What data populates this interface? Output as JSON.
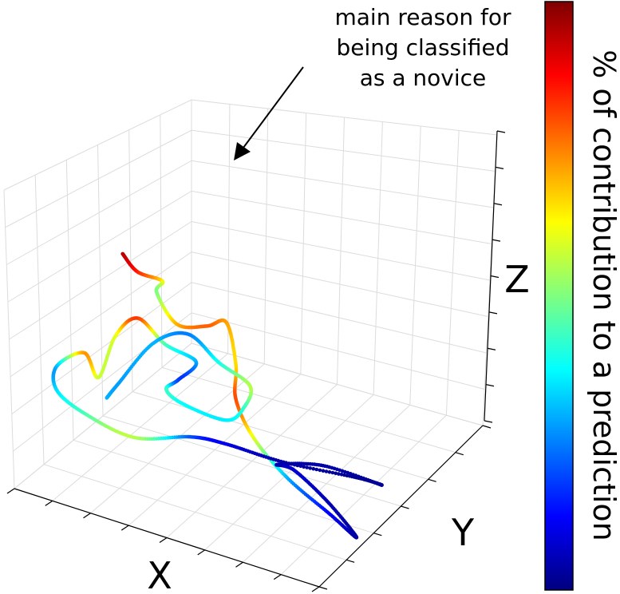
{
  "chart_data": {
    "type": "scatter",
    "projection": "3d",
    "xlabel": "X",
    "ylabel": "Y",
    "zlabel": "Z",
    "grid": true,
    "x_ticks": 9,
    "y_ticks": 7,
    "z_ticks": 9,
    "colorbar": {
      "label": "% of contribution to a prediction",
      "colormap": "jet",
      "colors": [
        "#00007f",
        "#0000ff",
        "#007fff",
        "#00ffff",
        "#7fff7f",
        "#ffff00",
        "#ff7f00",
        "#ff0000",
        "#7f0000"
      ],
      "range": [
        0,
        1
      ]
    },
    "annotation": {
      "lines": [
        "main reason for",
        "being classified",
        "as a novice"
      ],
      "arrow_target": "highest contribution point"
    },
    "trajectory_points": [
      [
        0.3,
        0.06,
        0.97,
        0.95
      ],
      [
        0.35,
        0.06,
        0.92,
        0.85
      ],
      [
        0.42,
        0.08,
        0.9,
        0.65
      ],
      [
        0.38,
        0.12,
        0.82,
        0.5
      ],
      [
        0.46,
        0.1,
        0.74,
        0.7
      ],
      [
        0.58,
        0.06,
        0.8,
        0.78
      ],
      [
        0.66,
        0.03,
        0.86,
        0.72
      ],
      [
        0.7,
        0.02,
        0.72,
        0.66
      ],
      [
        0.68,
        0.06,
        0.56,
        0.8
      ],
      [
        0.73,
        0.08,
        0.42,
        0.6
      ],
      [
        0.82,
        0.12,
        0.28,
        0.3
      ],
      [
        0.95,
        0.14,
        0.18,
        0.12
      ],
      [
        1.05,
        0.12,
        0.14,
        0.04
      ],
      [
        0.9,
        0.22,
        0.16,
        0.05
      ],
      [
        0.74,
        0.3,
        0.18,
        0.08
      ],
      [
        0.64,
        0.38,
        0.12,
        0.05
      ],
      [
        0.72,
        0.5,
        0.08,
        0.04
      ],
      [
        0.88,
        0.55,
        0.04,
        0.03
      ],
      [
        0.78,
        0.6,
        0.0,
        0.02
      ],
      [
        0.58,
        0.52,
        0.03,
        0.04
      ],
      [
        0.46,
        0.4,
        0.12,
        0.1
      ],
      [
        0.4,
        0.3,
        0.18,
        0.2
      ],
      [
        0.24,
        0.26,
        0.14,
        0.55
      ],
      [
        0.1,
        0.22,
        0.2,
        0.45
      ],
      [
        0.04,
        0.16,
        0.3,
        0.35
      ],
      [
        0.06,
        0.12,
        0.42,
        0.3
      ],
      [
        0.16,
        0.1,
        0.52,
        0.72
      ],
      [
        0.22,
        0.08,
        0.46,
        0.58
      ],
      [
        0.26,
        0.1,
        0.62,
        0.6
      ],
      [
        0.32,
        0.12,
        0.7,
        0.82
      ],
      [
        0.4,
        0.14,
        0.62,
        0.45
      ],
      [
        0.48,
        0.18,
        0.56,
        0.3
      ],
      [
        0.4,
        0.22,
        0.44,
        0.18
      ],
      [
        0.34,
        0.26,
        0.36,
        0.42
      ],
      [
        0.36,
        0.32,
        0.28,
        0.38
      ],
      [
        0.48,
        0.36,
        0.24,
        0.36
      ],
      [
        0.56,
        0.32,
        0.34,
        0.42
      ],
      [
        0.6,
        0.28,
        0.46,
        0.55
      ],
      [
        0.52,
        0.24,
        0.54,
        0.4
      ],
      [
        0.44,
        0.2,
        0.64,
        0.25
      ],
      [
        0.34,
        0.18,
        0.58,
        0.3
      ],
      [
        0.24,
        0.16,
        0.4,
        0.28
      ],
      [
        0.18,
        0.2,
        0.3,
        0.3
      ]
    ]
  }
}
